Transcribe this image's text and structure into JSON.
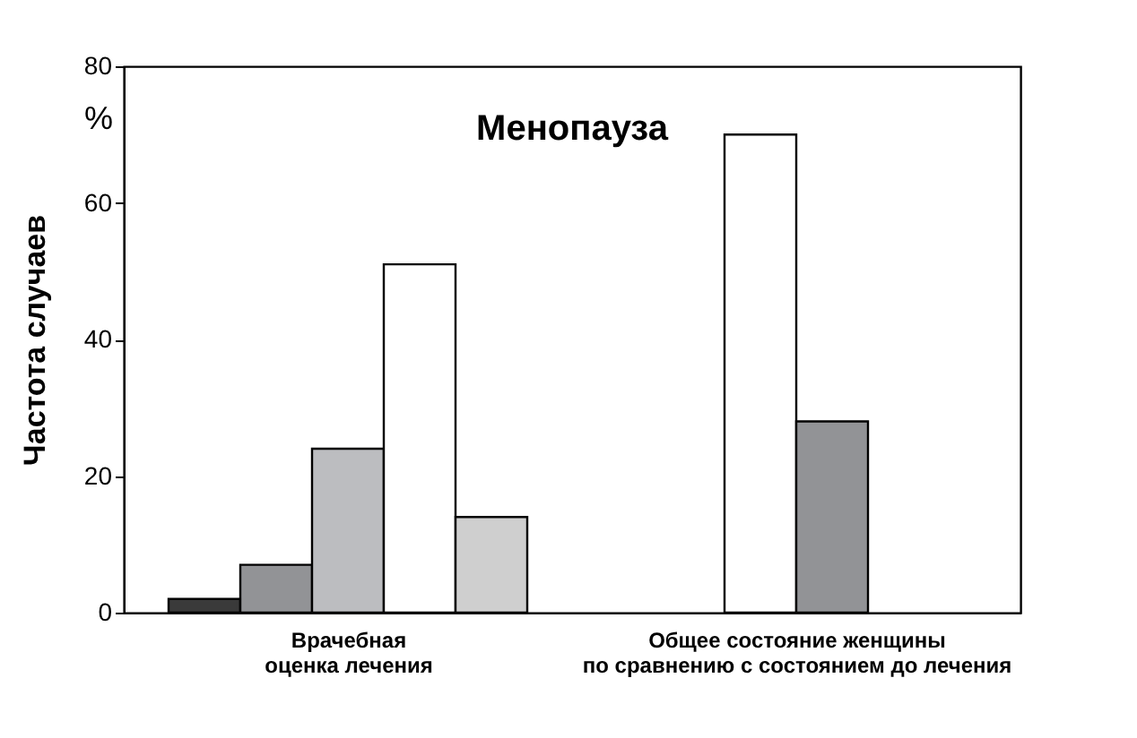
{
  "chart_data": {
    "type": "bar",
    "ylabel": "Частота случаев",
    "categories": [
      "Врачебная\nоценка лечения",
      "Общее состояние женщины\nпо сравнению с состоянием до лечения"
    ],
    "series": [
      {
        "color": "#3a3a3a",
        "values": [
          2,
          null
        ]
      },
      {
        "color": "#929396",
        "values": [
          7,
          null
        ]
      },
      {
        "color": "#bcbdc0",
        "values": [
          24,
          null
        ]
      },
      {
        "color": "#ffffff",
        "values": [
          51,
          70
        ]
      },
      {
        "color": "#cfcfcf",
        "values": [
          14,
          null
        ]
      },
      {
        "color": "#929396",
        "values": [
          null,
          28
        ]
      }
    ],
    "annotations": [
      "Менопауза",
      "%"
    ],
    "ylim": [
      0,
      80
    ],
    "yticks": [
      0,
      20,
      40,
      60,
      80
    ],
    "grid": false
  }
}
